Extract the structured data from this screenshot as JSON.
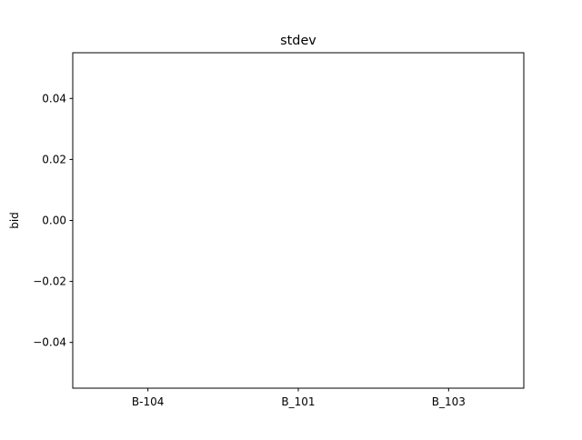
{
  "chart_data": {
    "type": "bar",
    "title": "stdev",
    "xlabel": "",
    "ylabel": "bid",
    "categories": [
      "B-104",
      "B_101",
      "B_103"
    ],
    "values": [
      0,
      0,
      0
    ],
    "ylim": [
      -0.055,
      0.055
    ],
    "yticks": [
      -0.04,
      -0.02,
      0.0,
      0.02,
      0.04
    ],
    "ytick_labels": [
      "−0.04",
      "−0.02",
      "0.00",
      "0.02",
      "0.04"
    ],
    "grid": false,
    "legend": "none",
    "colors": {
      "bar": "#1f77b4",
      "axes": "#000000",
      "background": "#ffffff"
    }
  }
}
